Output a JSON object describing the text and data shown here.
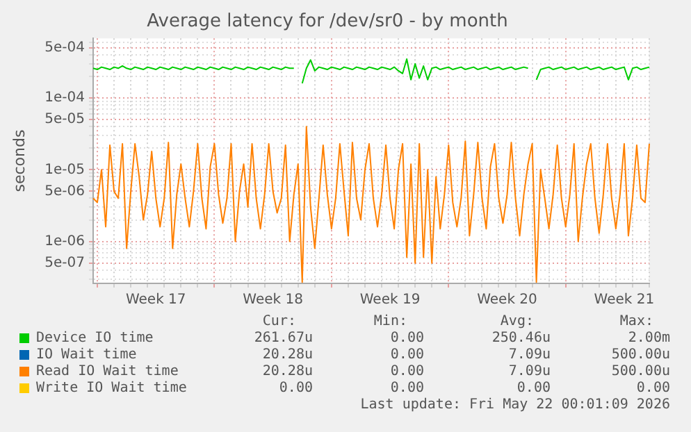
{
  "chart_data": {
    "type": "line",
    "title": "Average latency for /dev/sr0 - by month",
    "ylabel": "seconds",
    "log": "y",
    "grid": true,
    "legend": "bottom",
    "marker": "none",
    "line_style": "solid",
    "categories": [
      null,
      null,
      null,
      null,
      null,
      null,
      null,
      null,
      null,
      null,
      null,
      null,
      null,
      null,
      null,
      "Week 17",
      null,
      null,
      null,
      null,
      null,
      null,
      null,
      null,
      null,
      null,
      null,
      null,
      null,
      null,
      null,
      null,
      null,
      null,
      null,
      null,
      null,
      null,
      null,
      null,
      null,
      null,
      null,
      "Week 18",
      null,
      null,
      null,
      null,
      null,
      null,
      null,
      null,
      null,
      null,
      null,
      null,
      null,
      null,
      null,
      null,
      null,
      null,
      null,
      null,
      null,
      null,
      null,
      null,
      null,
      null,
      null,
      "Week 19",
      null,
      null,
      null,
      null,
      null,
      null,
      null,
      null,
      null,
      null,
      null,
      null,
      null,
      null,
      null,
      null,
      null,
      null,
      null,
      null,
      null,
      null,
      null,
      null,
      null,
      null,
      null,
      "Week 20",
      null,
      null,
      null,
      null,
      null,
      null,
      null,
      null,
      null,
      null,
      null,
      null,
      null,
      null,
      null,
      null,
      null,
      null,
      null,
      null,
      null,
      null,
      null,
      null,
      null,
      null,
      null,
      "Week 21",
      null,
      null,
      null,
      null,
      null,
      null
    ],
    "ylim": [
      2.6e-07,
      0.00068
    ],
    "yticks": [
      {
        "value": 3e-07,
        "label": null
      },
      {
        "value": 4e-07,
        "label": null
      },
      {
        "value": 5e-07,
        "label": "5e-07"
      },
      {
        "value": 6e-07,
        "label": null
      },
      {
        "value": 7e-07,
        "label": null
      },
      {
        "value": 8e-07,
        "label": null
      },
      {
        "value": 9e-07,
        "label": null
      },
      {
        "value": 1e-06,
        "label": "1e-06"
      },
      {
        "value": 2e-06,
        "label": null
      },
      {
        "value": 3e-06,
        "label": null
      },
      {
        "value": 4e-06,
        "label": null
      },
      {
        "value": 5e-06,
        "label": "5e-06"
      },
      {
        "value": 6e-06,
        "label": null
      },
      {
        "value": 7e-06,
        "label": null
      },
      {
        "value": 8e-06,
        "label": null
      },
      {
        "value": 9e-06,
        "label": null
      },
      {
        "value": 1e-05,
        "label": "1e-05"
      },
      {
        "value": 2e-05,
        "label": null
      },
      {
        "value": 3e-05,
        "label": null
      },
      {
        "value": 4e-05,
        "label": null
      },
      {
        "value": 5e-05,
        "label": "5e-05"
      },
      {
        "value": 6e-05,
        "label": null
      },
      {
        "value": 7e-05,
        "label": null
      },
      {
        "value": 8e-05,
        "label": null
      },
      {
        "value": 9e-05,
        "label": null
      },
      {
        "value": 0.0001,
        "label": "1e-04"
      },
      {
        "value": 0.0002,
        "label": null
      },
      {
        "value": 0.0003,
        "label": null
      },
      {
        "value": 0.0004,
        "label": null
      },
      {
        "value": 0.0005,
        "label": "5e-04"
      },
      {
        "value": 0.0006,
        "label": null
      }
    ],
    "series": [
      {
        "name": "Device IO time",
        "color": "#00cc00",
        "values": [
          0.00026,
          0.00025,
          0.00027,
          0.00026,
          0.00025,
          0.00027,
          0.00026,
          0.00028,
          0.00026,
          0.00025,
          0.00027,
          0.00026,
          0.00025,
          0.00027,
          0.00026,
          0.00025,
          0.00027,
          0.00026,
          0.00025,
          0.00027,
          0.00026,
          0.00025,
          0.00027,
          0.00026,
          0.00025,
          0.00027,
          0.00026,
          0.00025,
          0.00027,
          0.00026,
          0.00025,
          0.00027,
          0.00026,
          0.00025,
          0.00027,
          0.00026,
          0.00025,
          0.00027,
          0.00026,
          0.00025,
          0.00027,
          0.00026,
          0.00025,
          0.00027,
          0.00026,
          0.00025,
          0.00027,
          0.00026,
          0.00026,
          null,
          0.00016,
          0.00026,
          0.00034,
          0.00024,
          0.00027,
          0.00026,
          0.00025,
          0.00027,
          0.00026,
          0.00025,
          0.00027,
          0.00026,
          0.00025,
          0.00027,
          0.00026,
          0.00025,
          0.00027,
          0.00026,
          0.00025,
          0.00027,
          0.00026,
          0.00025,
          0.00027,
          0.00024,
          0.00022,
          0.00035,
          0.00018,
          0.0003,
          0.00019,
          0.00028,
          0.00018,
          0.00026,
          0.00027,
          0.00025,
          0.00026,
          0.00027,
          0.00025,
          0.00026,
          0.00027,
          0.00025,
          0.00026,
          0.00027,
          0.00025,
          0.00026,
          0.00027,
          0.00025,
          0.00026,
          0.00027,
          0.00025,
          0.00026,
          0.00027,
          0.00025,
          0.00026,
          0.00027,
          0.00026,
          null,
          0.00018,
          0.00025,
          0.00026,
          0.00027,
          0.00025,
          0.00026,
          0.00027,
          0.00025,
          0.00026,
          0.00027,
          0.00025,
          0.00026,
          0.00027,
          0.00025,
          0.00026,
          0.00027,
          0.00025,
          0.00026,
          0.00027,
          0.00025,
          0.00026,
          0.00027,
          0.00018,
          0.00026,
          0.00027,
          0.00025,
          0.00026,
          0.00027
        ]
      },
      {
        "name": "IO Wait time",
        "color": "#0066b3",
        "values": [
          null,
          null,
          null,
          null,
          null,
          null,
          null,
          null,
          null,
          null,
          null,
          null,
          null,
          null,
          null,
          null,
          null,
          null,
          null,
          null,
          null,
          null,
          null,
          null,
          null,
          null,
          null,
          null,
          null,
          null,
          null,
          null,
          null,
          null,
          null,
          null,
          null,
          null,
          null,
          null,
          null,
          null,
          null,
          null,
          null,
          null,
          null,
          null,
          null,
          null,
          null,
          null,
          null,
          null,
          null,
          null,
          null,
          null,
          null,
          null,
          null,
          null,
          null,
          null,
          null,
          null,
          null,
          null,
          null,
          null,
          null,
          null,
          null,
          null,
          null,
          null,
          null,
          null,
          null,
          null,
          null,
          null,
          null,
          null,
          null,
          null,
          null,
          null,
          null,
          null,
          null,
          null,
          null,
          null,
          null,
          null,
          null,
          null,
          null,
          null,
          null,
          null,
          null,
          null,
          null,
          null,
          null,
          null,
          null,
          null,
          null,
          null,
          null,
          null,
          null,
          null,
          null,
          null,
          null,
          null,
          null,
          null,
          null,
          null,
          null,
          null,
          null,
          null,
          null,
          null,
          null,
          null,
          null,
          null
        ]
      },
      {
        "name": "Read IO Wait time",
        "color": "#ff8000",
        "values": [
          4e-06,
          3.5e-06,
          1e-05,
          1.6e-06,
          2.2e-05,
          5e-06,
          4e-06,
          2.3e-05,
          8e-07,
          5e-06,
          2.3e-05,
          8e-06,
          2e-06,
          4.5e-06,
          1.8e-05,
          4e-06,
          1.6e-06,
          4e-06,
          2.4e-05,
          8e-07,
          4.5e-06,
          1.2e-05,
          4e-06,
          1.6e-06,
          5e-06,
          2.3e-05,
          4e-06,
          1.5e-06,
          1.1e-05,
          2.3e-05,
          4.5e-06,
          1.8e-06,
          4e-06,
          2.3e-05,
          1e-06,
          5e-06,
          1.2e-05,
          3e-06,
          2.3e-05,
          4e-06,
          1.5e-06,
          4.5e-06,
          2.3e-05,
          5e-06,
          2.5e-06,
          4e-06,
          2.2e-05,
          1e-06,
          4.5e-06,
          1.2e-05,
          2.7e-07,
          4e-05,
          3e-06,
          8e-07,
          4e-06,
          2.2e-05,
          4.5e-06,
          1.5e-06,
          4e-06,
          2.3e-05,
          5e-06,
          1.2e-06,
          2.4e-05,
          4e-06,
          2e-06,
          1e-05,
          2.3e-05,
          4e-06,
          1.6e-06,
          4.5e-06,
          2.2e-05,
          4e-06,
          1.5e-06,
          1e-05,
          2.3e-05,
          6e-07,
          1.2e-05,
          5e-07,
          2.3e-05,
          6e-07,
          1e-05,
          5e-07,
          8e-06,
          1.5e-06,
          4.5e-06,
          2.2e-05,
          3.5e-06,
          1.6e-06,
          4e-06,
          2.5e-05,
          1.2e-06,
          4.5e-06,
          2.4e-05,
          4e-06,
          1.5e-06,
          1.1e-05,
          2.3e-05,
          4e-06,
          1.8e-06,
          4.5e-06,
          2.4e-05,
          4e-06,
          1.2e-06,
          4.5e-06,
          1.2e-05,
          2.3e-05,
          2.7e-07,
          1e-05,
          4e-06,
          1.5e-06,
          4.5e-06,
          2.2e-05,
          4e-06,
          1.6e-06,
          4.5e-06,
          2.3e-05,
          1e-06,
          4e-06,
          1.2e-05,
          2.3e-05,
          4e-06,
          1.3e-06,
          4.5e-06,
          2.3e-05,
          4e-06,
          1.5e-06,
          4.5e-06,
          2.3e-05,
          1.2e-06,
          4e-06,
          2.2e-05,
          4e-06,
          3.5e-06,
          2.3e-05
        ]
      },
      {
        "name": "Write IO Wait time",
        "color": "#ffcc00",
        "values": [
          null,
          null,
          null,
          null,
          null,
          null,
          null,
          null,
          null,
          null,
          null,
          null,
          null,
          null,
          null,
          null,
          null,
          null,
          null,
          null,
          null,
          null,
          null,
          null,
          null,
          null,
          null,
          null,
          null,
          null,
          null,
          null,
          null,
          null,
          null,
          null,
          null,
          null,
          null,
          null,
          null,
          null,
          null,
          null,
          null,
          null,
          null,
          null,
          null,
          null,
          null,
          null,
          null,
          null,
          null,
          null,
          null,
          null,
          null,
          null,
          null,
          null,
          null,
          null,
          null,
          null,
          null,
          null,
          null,
          null,
          null,
          null,
          null,
          null,
          null,
          null,
          null,
          null,
          null,
          null,
          null,
          null,
          null,
          null,
          null,
          null,
          null,
          null,
          null,
          null,
          null,
          null,
          null,
          null,
          null,
          null,
          null,
          null,
          null,
          null,
          null,
          null,
          null,
          null,
          null,
          null,
          null,
          null,
          null,
          null,
          null,
          null,
          null,
          null,
          null,
          null,
          null,
          null,
          null,
          null,
          null,
          null,
          null,
          null,
          null,
          null,
          null,
          null,
          null,
          null,
          null,
          null,
          null,
          null
        ]
      }
    ],
    "annotations": [
      "Cur:",
      "Min:",
      "Avg:",
      "Max:",
      "261.67u",
      "0.00",
      "250.46u",
      "2.00m",
      "20.28u",
      "0.00",
      "7.09u",
      "500.00u",
      "20.28u",
      "0.00",
      "7.09u",
      "500.00u",
      "0.00",
      "0.00",
      "0.00",
      "0.00",
      "Last update: Fri May 22 00:01:09 2026"
    ]
  }
}
